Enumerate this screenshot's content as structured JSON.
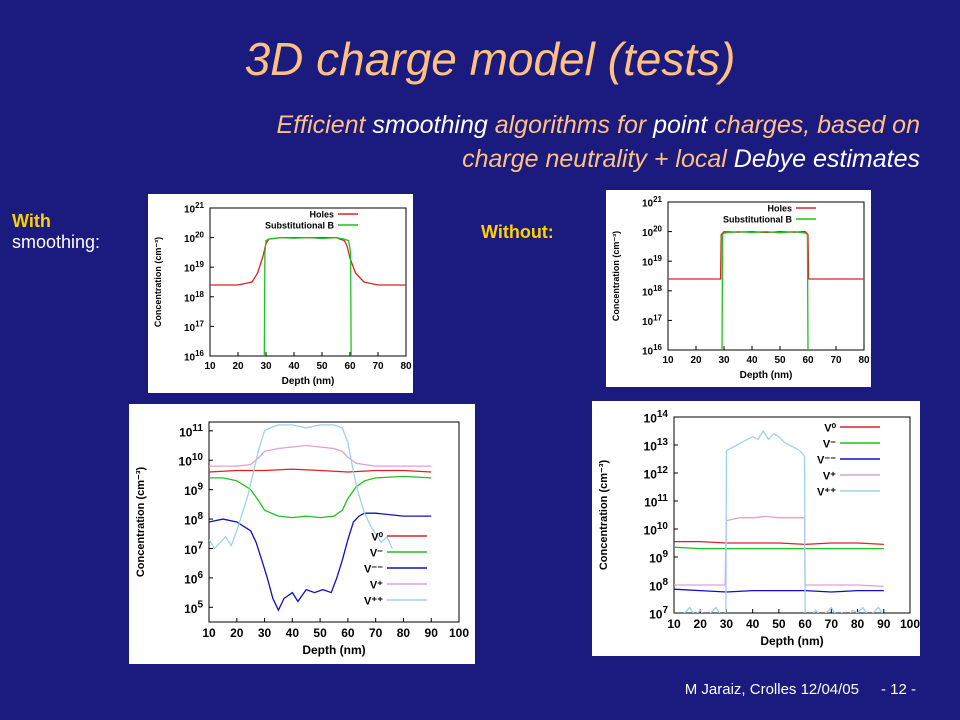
{
  "slide": {
    "title": "3D charge model (tests)",
    "subtitle_parts": [
      "Efficient ",
      "smoothing",
      " algorithms for ",
      "point",
      " charges, based on"
    ],
    "subtitle_line2_parts": [
      "charge neutrality + local ",
      "Debye estimates"
    ],
    "label_with_1": "With",
    "label_with_2": "smoothing:",
    "label_without": "Without:",
    "footer_author": "M Jaraiz, Crolles 12/04/05",
    "footer_page": "- 12 -"
  },
  "colors": {
    "background": "#1a1a7f",
    "title": "#ffc080",
    "label": "#ffd000",
    "holes": "#e02020",
    "subB": "#20c020",
    "V0": "#e02020",
    "Vm": "#20c020",
    "Vmm": "#1010c0",
    "Vp": "#e0a0d0",
    "Vpp": "#a0d0f0"
  },
  "chart_data": [
    {
      "id": "smooth_top",
      "type": "line",
      "xlabel": "Depth (nm)",
      "ylabel": "Concentration (cm⁻³)",
      "xlim": [
        10,
        80
      ],
      "ylim_log10": [
        16,
        21
      ],
      "x_ticks": [
        "10",
        "20",
        "30",
        "40",
        "50",
        "60",
        "70",
        "80"
      ],
      "y_ticks_exp": [
        "16",
        "17",
        "18",
        "19",
        "20",
        "21"
      ],
      "y_tick_base": "10",
      "series": [
        {
          "name": "Holes",
          "color_key": "holes",
          "x": [
            10,
            20,
            25,
            27,
            29,
            30,
            31,
            35,
            40,
            45,
            50,
            55,
            58,
            59,
            60,
            62,
            65,
            70,
            80
          ],
          "log10": [
            18.4,
            18.4,
            18.5,
            18.8,
            19.4,
            19.8,
            19.95,
            20.0,
            20.0,
            20.0,
            20.0,
            20.0,
            19.9,
            19.7,
            19.3,
            18.8,
            18.5,
            18.4,
            18.4
          ]
        },
        {
          "name": "Substitutional B",
          "color_key": "subB",
          "x": [
            29.4,
            29.6,
            30,
            31,
            35,
            40,
            45,
            50,
            55,
            58,
            59.5,
            60.2,
            60.4
          ],
          "log10": [
            16,
            19.5,
            19.9,
            19.95,
            20.0,
            19.98,
            20.0,
            19.97,
            20.0,
            19.95,
            19.9,
            19.5,
            16
          ]
        }
      ]
    },
    {
      "id": "nosmooth_top",
      "type": "line",
      "xlabel": "Depth (nm)",
      "ylabel": "Concentration (cm⁻³)",
      "xlim": [
        10,
        80
      ],
      "ylim_log10": [
        16,
        21
      ],
      "x_ticks": [
        "10",
        "20",
        "30",
        "40",
        "50",
        "60",
        "70",
        "80"
      ],
      "y_ticks_exp": [
        "16",
        "17",
        "18",
        "19",
        "20",
        "21"
      ],
      "y_tick_base": "10",
      "series": [
        {
          "name": "Holes",
          "color_key": "holes",
          "x": [
            10,
            28.8,
            29,
            30,
            35,
            40,
            45,
            50,
            55,
            59,
            60,
            60.2,
            80
          ],
          "log10": [
            18.4,
            18.4,
            19.9,
            20.0,
            19.98,
            20.0,
            19.97,
            20.0,
            19.98,
            20.0,
            19.9,
            18.4,
            18.4
          ]
        },
        {
          "name": "Substitutional B",
          "color_key": "subB",
          "x": [
            29.3,
            29.5,
            30,
            35,
            40,
            45,
            50,
            55,
            59,
            59.8,
            60.0
          ],
          "log10": [
            16,
            19.9,
            19.95,
            20.0,
            19.97,
            20.0,
            19.96,
            20.0,
            19.95,
            19.9,
            16
          ]
        }
      ]
    },
    {
      "id": "smooth_bottom",
      "type": "line",
      "xlabel": "Depth (nm)",
      "ylabel": "Concentration (cm⁻³)",
      "xlim": [
        10,
        100
      ],
      "ylim_log10": [
        4.5,
        11.3
      ],
      "x_ticks": [
        "10",
        "20",
        "30",
        "40",
        "50",
        "60",
        "70",
        "80",
        "90",
        "100"
      ],
      "y_ticks_exp": [
        "5",
        "6",
        "7",
        "8",
        "9",
        "10",
        "11"
      ],
      "y_tick_base": "10",
      "legend": [
        "V⁰",
        "V⁻",
        "V⁻⁻",
        "V⁺",
        "V⁺⁺"
      ],
      "series": [
        {
          "name": "V⁰",
          "color_key": "V0",
          "x": [
            10,
            20,
            30,
            40,
            50,
            60,
            70,
            80,
            90
          ],
          "log10": [
            9.6,
            9.65,
            9.65,
            9.7,
            9.65,
            9.6,
            9.65,
            9.65,
            9.6
          ]
        },
        {
          "name": "V⁻",
          "color_key": "Vm",
          "x": [
            10,
            15,
            20,
            25,
            28,
            30,
            35,
            40,
            45,
            50,
            55,
            58,
            60,
            63,
            66,
            70,
            80,
            90
          ],
          "log10": [
            9.4,
            9.4,
            9.3,
            9.0,
            8.6,
            8.3,
            8.1,
            8.05,
            8.1,
            8.05,
            8.1,
            8.3,
            8.7,
            9.1,
            9.3,
            9.4,
            9.45,
            9.4
          ]
        },
        {
          "name": "V⁻⁻",
          "color_key": "Vmm",
          "x": [
            10,
            15,
            20,
            25,
            27,
            29,
            31,
            33,
            35,
            37,
            40,
            42,
            45,
            48,
            51,
            54,
            56,
            58,
            60,
            62,
            64,
            66,
            70,
            80,
            90
          ],
          "log10": [
            7.9,
            8.0,
            7.9,
            7.6,
            7.2,
            6.6,
            6.0,
            5.3,
            4.9,
            5.3,
            5.5,
            5.2,
            5.6,
            5.5,
            5.6,
            5.5,
            6.0,
            6.6,
            7.3,
            7.9,
            8.1,
            8.2,
            8.2,
            8.1,
            8.1
          ]
        },
        {
          "name": "V⁺",
          "color_key": "Vp",
          "x": [
            10,
            20,
            25,
            28,
            30,
            35,
            40,
            45,
            50,
            55,
            58,
            60,
            63,
            66,
            70,
            80,
            90
          ],
          "log10": [
            9.8,
            9.8,
            9.85,
            10.1,
            10.3,
            10.4,
            10.45,
            10.5,
            10.45,
            10.4,
            10.3,
            10.1,
            9.9,
            9.85,
            9.8,
            9.8,
            9.8
          ]
        },
        {
          "name": "V⁺⁺",
          "color_key": "Vpp",
          "x": [
            10,
            12,
            14,
            16,
            18,
            20,
            22,
            24,
            26,
            28,
            30,
            32,
            35,
            40,
            45,
            50,
            55,
            58,
            60,
            62,
            64,
            66,
            68,
            70,
            72,
            74,
            76
          ],
          "log10": [
            7.3,
            7.0,
            7.2,
            7.4,
            7.1,
            7.6,
            8.2,
            8.8,
            9.6,
            10.4,
            11.0,
            11.1,
            11.2,
            11.2,
            11.1,
            11.2,
            11.2,
            11.1,
            10.6,
            9.6,
            8.8,
            8.2,
            7.8,
            7.5,
            7.2,
            7.4,
            7.0
          ]
        }
      ]
    },
    {
      "id": "nosmooth_bottom",
      "type": "line",
      "xlabel": "Depth (nm)",
      "ylabel": "Concentration (cm⁻³)",
      "xlim": [
        10,
        100
      ],
      "ylim_log10": [
        7,
        14
      ],
      "x_ticks": [
        "10",
        "20",
        "30",
        "40",
        "50",
        "60",
        "70",
        "80",
        "90",
        "100"
      ],
      "y_ticks_exp": [
        "7",
        "8",
        "9",
        "10",
        "11",
        "12",
        "13",
        "14"
      ],
      "y_tick_base": "10",
      "legend": [
        "V⁰",
        "V⁻",
        "V⁻⁻",
        "V⁺",
        "V⁺⁺"
      ],
      "series": [
        {
          "name": "V⁰",
          "color_key": "V0",
          "x": [
            10,
            20,
            30,
            40,
            50,
            60,
            70,
            80,
            90
          ],
          "log10": [
            9.55,
            9.55,
            9.5,
            9.5,
            9.5,
            9.45,
            9.5,
            9.5,
            9.45
          ]
        },
        {
          "name": "V⁻",
          "color_key": "Vm",
          "x": [
            10,
            20,
            30,
            40,
            50,
            60,
            70,
            80,
            90
          ],
          "log10": [
            9.35,
            9.3,
            9.3,
            9.3,
            9.3,
            9.3,
            9.3,
            9.3,
            9.3
          ]
        },
        {
          "name": "V⁻⁻",
          "color_key": "Vmm",
          "x": [
            10,
            20,
            30,
            40,
            50,
            60,
            70,
            80,
            90
          ],
          "log10": [
            7.85,
            7.8,
            7.75,
            7.8,
            7.8,
            7.8,
            7.75,
            7.8,
            7.8
          ]
        },
        {
          "name": "V⁺",
          "color_key": "Vp",
          "x": [
            10,
            29.5,
            30,
            35,
            40,
            45,
            50,
            55,
            59.8,
            60,
            70,
            80,
            90
          ],
          "log10": [
            8.0,
            8.0,
            10.3,
            10.4,
            10.4,
            10.45,
            10.4,
            10.4,
            10.4,
            8.0,
            8.0,
            8.0,
            7.95
          ]
        },
        {
          "name": "V⁺⁺",
          "color_key": "Vpp",
          "x": [
            10,
            12,
            14,
            16,
            18,
            20,
            22,
            24,
            26,
            28,
            29.8,
            30,
            32,
            34,
            36,
            38,
            40,
            42,
            44,
            46,
            48,
            50,
            52,
            54,
            56,
            58,
            59.8,
            60,
            62,
            64,
            66,
            68,
            70,
            72,
            74,
            76,
            78,
            80,
            82,
            84,
            86,
            88,
            90
          ],
          "log10": [
            7.0,
            6.8,
            7.0,
            7.2,
            6.9,
            7.1,
            6.8,
            7.0,
            7.2,
            6.9,
            7.0,
            12.8,
            12.9,
            13.0,
            13.1,
            13.2,
            13.3,
            13.2,
            13.5,
            13.2,
            13.4,
            13.3,
            13.1,
            13.0,
            12.9,
            12.8,
            12.6,
            7.0,
            6.8,
            7.1,
            6.9,
            7.0,
            7.2,
            6.9,
            7.0,
            6.8,
            7.1,
            7.0,
            7.2,
            6.9,
            7.0,
            7.2,
            6.9
          ]
        }
      ]
    }
  ]
}
